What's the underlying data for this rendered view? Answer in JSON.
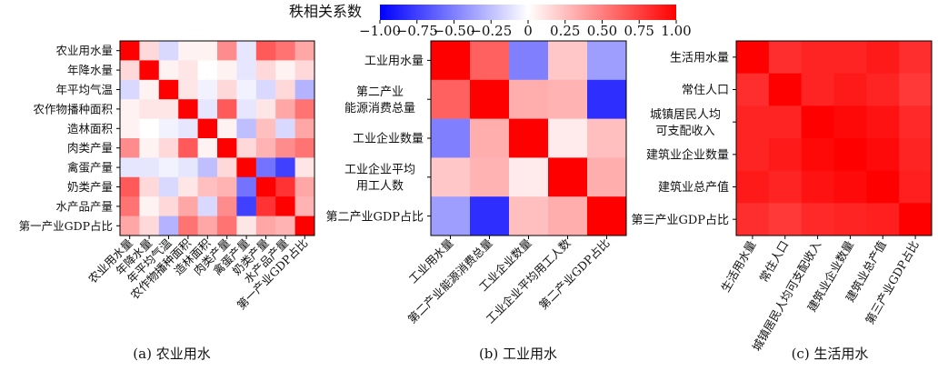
{
  "colorbar": {
    "label": "秩相关系数",
    "vmin": -1.0,
    "vmax": 1.0,
    "ticks": [
      {
        "value": -1.0,
        "label": "−1.00"
      },
      {
        "value": -0.75,
        "label": "−0.75"
      },
      {
        "value": -0.5,
        "label": "−0.50"
      },
      {
        "value": -0.25,
        "label": "−0.25"
      },
      {
        "value": 0.0,
        "label": "0"
      },
      {
        "value": 0.25,
        "label": "0.25"
      },
      {
        "value": 0.5,
        "label": "0.50"
      },
      {
        "value": 0.75,
        "label": "0.75"
      },
      {
        "value": 1.0,
        "label": "1.00"
      }
    ],
    "colors": {
      "negative": "#0000ff",
      "neutral": "#ffffff",
      "positive": "#ff0000"
    }
  },
  "chart_data": [
    {
      "type": "heatmap",
      "title": "(a) 农业用水",
      "row_labels": [
        "农业用水量",
        "年降水量",
        "年平均气温",
        "农作物播种面积",
        "造林面积",
        "肉类产量",
        "禽蛋产量",
        "奶类产量",
        "水产品产量",
        "第一产业GDP占比"
      ],
      "col_labels": [
        "农业用水量",
        "年降水量",
        "年平均气温",
        "农作物播种面积",
        "造林面积",
        "肉类产量",
        "禽蛋产量",
        "奶类产量",
        "水产品产量",
        "第一产业GDP占比"
      ],
      "matrix": [
        [
          1.0,
          0.15,
          -0.15,
          0.05,
          0.05,
          0.45,
          -0.1,
          0.65,
          0.55,
          0.35
        ],
        [
          0.15,
          1.0,
          0.05,
          0.1,
          0.0,
          0.05,
          -0.1,
          0.15,
          0.05,
          0.15
        ],
        [
          -0.15,
          0.05,
          1.0,
          0.1,
          -0.05,
          0.15,
          -0.05,
          -0.15,
          0.15,
          -0.3
        ],
        [
          0.05,
          0.1,
          0.1,
          1.0,
          -0.1,
          0.65,
          -0.1,
          0.1,
          0.35,
          0.55
        ],
        [
          0.05,
          0.0,
          -0.05,
          -0.1,
          1.0,
          0.05,
          -0.25,
          0.25,
          -0.15,
          0.35
        ],
        [
          0.45,
          0.05,
          0.15,
          0.65,
          0.05,
          1.0,
          0.15,
          0.3,
          0.45,
          0.55
        ],
        [
          -0.1,
          -0.1,
          -0.05,
          -0.1,
          -0.25,
          0.15,
          1.0,
          -0.55,
          -0.75,
          0.1
        ],
        [
          0.65,
          0.15,
          -0.15,
          0.1,
          0.25,
          0.3,
          -0.55,
          1.0,
          0.8,
          0.35
        ],
        [
          0.55,
          0.05,
          0.15,
          0.35,
          -0.15,
          0.45,
          -0.75,
          0.8,
          1.0,
          0.3
        ],
        [
          0.35,
          0.15,
          -0.3,
          0.55,
          0.35,
          0.55,
          0.1,
          0.35,
          0.3,
          1.0
        ]
      ]
    },
    {
      "type": "heatmap",
      "title": "(b) 工业用水",
      "row_labels": [
        "工业用水量",
        "第二产业\n能源消费总量",
        "工业企业数量",
        "工业企业平均\n用工人数",
        "第二产业GDP占比"
      ],
      "col_labels": [
        "工业用水量",
        "第二产业能源消费总量",
        "工业企业数量",
        "工业企业平均用工人数",
        "第二产业GDP占比"
      ],
      "matrix": [
        [
          1.0,
          0.62,
          -0.5,
          0.22,
          -0.38
        ],
        [
          0.62,
          1.0,
          0.32,
          0.3,
          -0.82
        ],
        [
          -0.5,
          0.32,
          1.0,
          0.08,
          0.25
        ],
        [
          0.22,
          0.3,
          0.08,
          1.0,
          0.32
        ],
        [
          -0.38,
          -0.82,
          0.25,
          0.32,
          1.0
        ]
      ]
    },
    {
      "type": "heatmap",
      "title": "(c) 生活用水",
      "row_labels": [
        "生活用水量",
        "常住人口",
        "城镇居民人均\n可支配收入",
        "建筑业企业数量",
        "建筑业总产值",
        "第三产业GDP占比"
      ],
      "col_labels": [
        "生活用水量",
        "常住人口",
        "城镇居民人均可支配收入",
        "建筑业企业数量",
        "建筑业总产值",
        "第三产业GDP占比"
      ],
      "matrix": [
        [
          1.0,
          0.82,
          0.86,
          0.86,
          0.9,
          0.82
        ],
        [
          0.82,
          1.0,
          0.86,
          0.9,
          0.86,
          0.78
        ],
        [
          0.86,
          0.86,
          1.0,
          0.97,
          0.93,
          0.84
        ],
        [
          0.86,
          0.9,
          0.97,
          1.0,
          0.96,
          0.86
        ],
        [
          0.9,
          0.86,
          0.93,
          0.96,
          1.0,
          0.88
        ],
        [
          0.82,
          0.78,
          0.84,
          0.86,
          0.88,
          1.0
        ]
      ]
    }
  ]
}
